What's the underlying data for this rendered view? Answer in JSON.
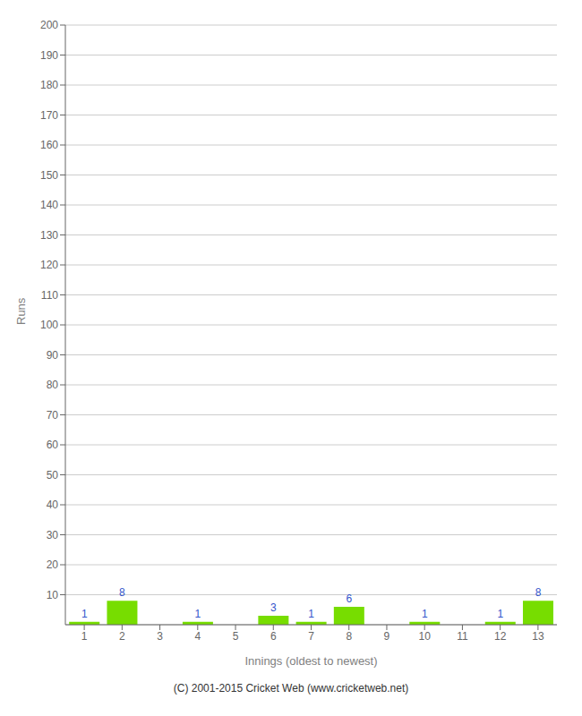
{
  "chart_data": {
    "type": "bar",
    "categories": [
      "1",
      "2",
      "3",
      "4",
      "5",
      "6",
      "7",
      "8",
      "9",
      "10",
      "11",
      "12",
      "13"
    ],
    "values": [
      1,
      8,
      0,
      1,
      0,
      3,
      1,
      6,
      0,
      1,
      0,
      1,
      8
    ],
    "color": "#77dd00",
    "xlabel": "Innings (oldest to newest)",
    "ylabel": "Runs",
    "ylim": [
      0,
      200
    ],
    "yticks": [
      10,
      20,
      30,
      40,
      50,
      60,
      70,
      80,
      90,
      100,
      110,
      120,
      130,
      140,
      150,
      160,
      170,
      180,
      190,
      200
    ],
    "grid": true,
    "data_labels": true,
    "annotations": [
      "(C) 2001-2015 Cricket Web (www.cricketweb.net)"
    ]
  }
}
